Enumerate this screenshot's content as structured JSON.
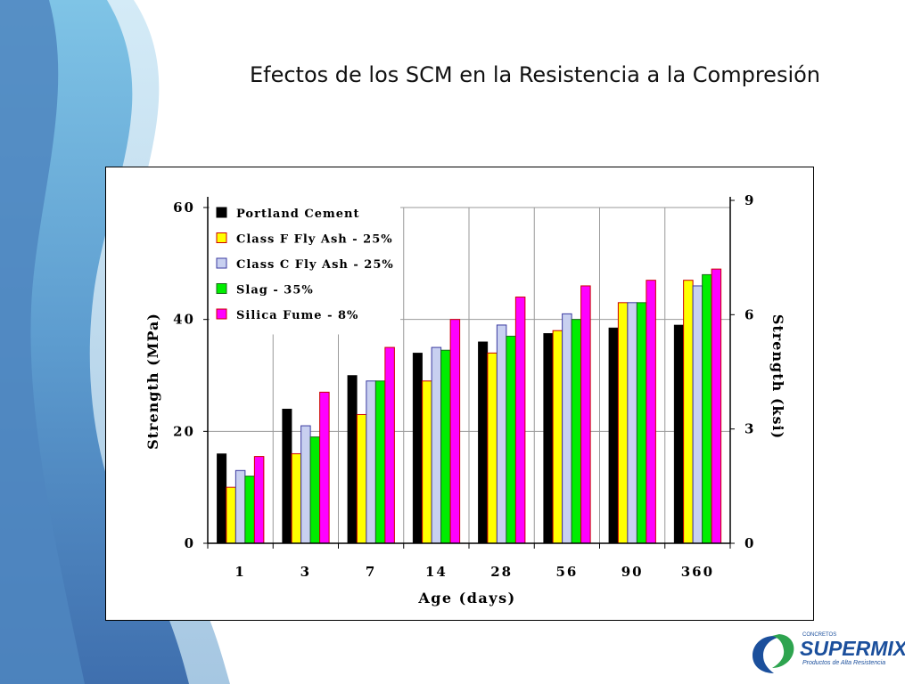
{
  "slide": {
    "title": "Efectos de los SCM en la Resistencia a la Compresión"
  },
  "logo": {
    "top_text": "CONCRETOS",
    "brand": "SUPERMIX",
    "tagline": "Productos de Alta Resistencia",
    "color": "#1b4f9c"
  },
  "chart_data": {
    "type": "bar",
    "xlabel": "Age (days)",
    "ylabel": "Strength (MPa)",
    "ylabel_right": "Strength (ksi)",
    "categories": [
      "1",
      "3",
      "7",
      "14",
      "28",
      "56",
      "90",
      "360"
    ],
    "ylim": [
      0,
      60
    ],
    "yticks": [
      "0",
      "20",
      "40",
      "60"
    ],
    "ylim_right": [
      0,
      9
    ],
    "yticks_right": [
      "0",
      "3",
      "6",
      "9"
    ],
    "grid": true,
    "legend_position": "top-left",
    "series": [
      {
        "name": "Portland Cement",
        "color": "#000000",
        "values": [
          16,
          24,
          30,
          34,
          36,
          37.5,
          38.5,
          39
        ]
      },
      {
        "name": "Class F Fly Ash - 25%",
        "color": "#ffff00",
        "values": [
          10,
          16,
          23,
          29,
          34,
          38,
          43,
          47
        ]
      },
      {
        "name": "Class C Fly Ash - 25%",
        "color": "#c8d0f0",
        "values": [
          13,
          21,
          29,
          35,
          39,
          41,
          43,
          46
        ]
      },
      {
        "name": "Slag - 35%",
        "color": "#00ee00",
        "values": [
          12,
          19,
          29,
          34.5,
          37,
          40,
          43,
          48
        ]
      },
      {
        "name": "Silica Fume - 8%",
        "color": "#ff00ff",
        "values": [
          15.5,
          27,
          35,
          40,
          44,
          46,
          47,
          49
        ]
      }
    ]
  }
}
